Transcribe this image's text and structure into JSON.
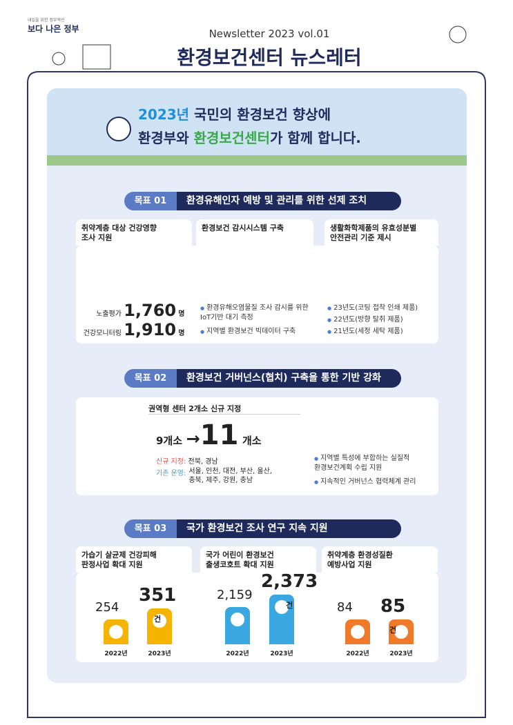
{
  "header": {
    "logo_small": "내일을 위한 정부혁신",
    "logo": "보다 나은 정부",
    "newsletter": "Newsletter 2023  vol.01",
    "title": "환경보건센터 뉴스레터"
  },
  "banner": {
    "line1": [
      "2023년",
      "국민의 환경보건 향상에"
    ],
    "line2": [
      "환경부와 ",
      "환경보건센터",
      "가 함께 합니다."
    ]
  },
  "goal1": {
    "badge": "목표 01",
    "title": "환경유해인자 예방 및 관리를 위한 선제 조치",
    "tabs": [
      "취약계층 대상 건강영향\n조사 지원",
      "환경보건 감시시스템 구축",
      "생활화학제품의 유효성분별\n안전관리 기준 제시"
    ],
    "stats": [
      {
        "label": "노출평가",
        "value": "1,760",
        "unit": "명"
      },
      {
        "label": "건강모니터링",
        "value": "1,910",
        "unit": "명"
      }
    ],
    "bullets2": [
      "환경유해오염물질 조사 감시를 위한 IoT기반 대기 측정",
      "지역별 환경보건 빅데이터 구축"
    ],
    "bullets3": [
      "23년도(코팅 접착 인쇄 제품)",
      "22년도(방향 탈취 제품)",
      "21년도(세정 세탁 제품)"
    ]
  },
  "goal2": {
    "badge": "목표 02",
    "title": "환경보건 거버넌스(협치) 구축을 통한 기반 강화",
    "tab": "권역형 센터 2개소 신규 지정",
    "from": "9개소",
    "arrow": "→",
    "to": "11",
    "to_unit": "개소",
    "new_label": "신규 지정:",
    "new_value": "전북, 경남",
    "old_label": "기존 운영:",
    "old_value": "서울, 인천, 대전, 부산, 울산,\n충북, 제주, 강원, 충남",
    "bullets": [
      "지역별 특성에 부합하는 실질적\n환경보건계획 수립 지원",
      "지속적인 거버넌스 협력체계 관리"
    ]
  },
  "goal3": {
    "badge": "목표 03",
    "title": "국가 환경보건 조사 연구 지속 지원",
    "items": [
      {
        "title": "가습기 살균제 건강피해\n판정사업 확대 지원",
        "bars": [
          {
            "value": "254",
            "year": "2022년"
          },
          {
            "value": "351",
            "unit": "건",
            "year": "2023년"
          }
        ]
      },
      {
        "title": "국가 어린이 환경보건\n출생코호트 확대 지원",
        "bars": [
          {
            "value": "2,159",
            "year": "2022년"
          },
          {
            "value": "2,373",
            "unit": "건",
            "year": "2023년"
          }
        ]
      },
      {
        "title": "취약계층 환경성질환\n예방사업 지원",
        "bars": [
          {
            "value": "84",
            "year": "2022년"
          },
          {
            "value": "85",
            "unit": "건",
            "year": "2023년"
          }
        ]
      }
    ]
  }
}
